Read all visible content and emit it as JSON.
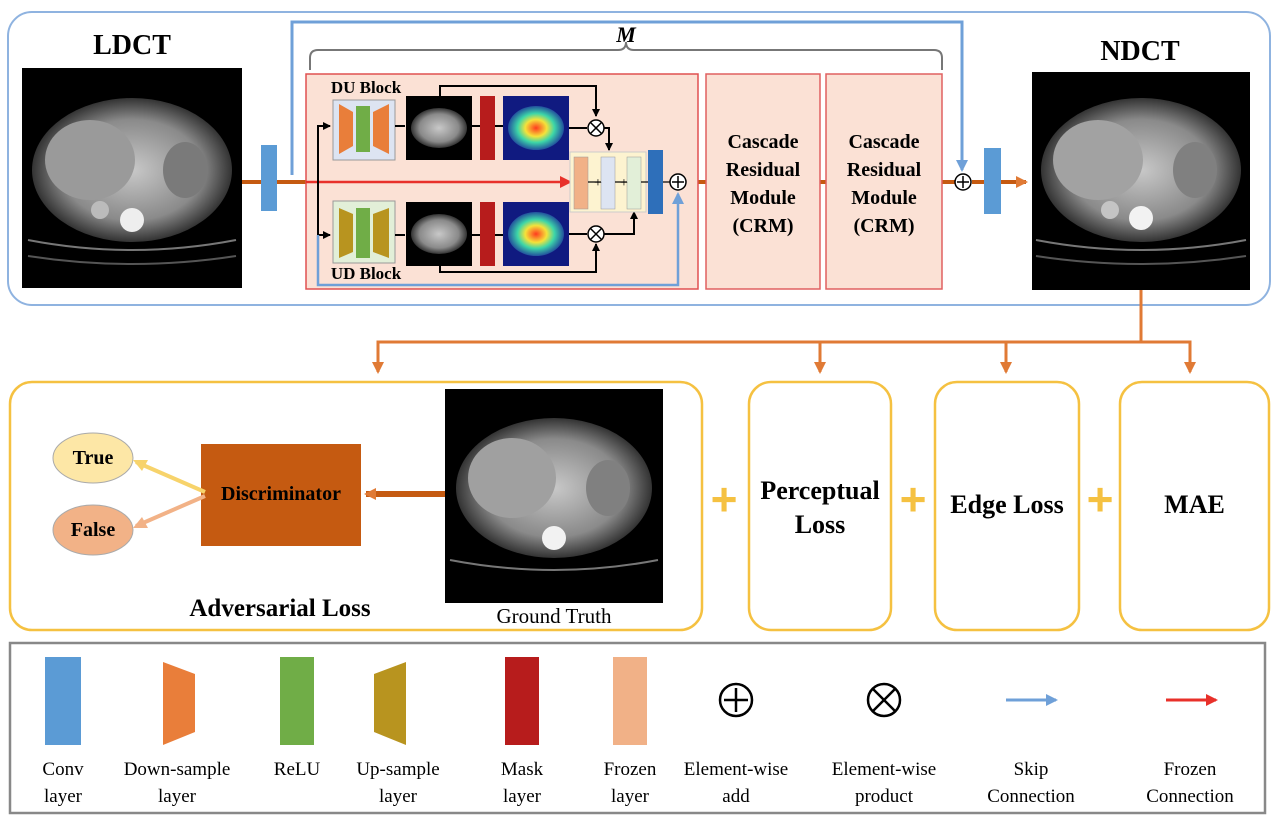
{
  "top": {
    "input_label": "LDCT",
    "output_label": "NDCT",
    "m_label": "M",
    "du_block": "DU Block",
    "ud_block": "UD Block",
    "crm1": [
      "Cascade",
      "Residual",
      "Module",
      "(CRM)"
    ],
    "crm2": [
      "Cascade",
      "Residual",
      "Module",
      "(CRM)"
    ]
  },
  "losses": {
    "adversarial": "Adversarial Loss",
    "discriminator": "Discriminator",
    "true_label": "True",
    "false_label": "False",
    "ground_truth": "Ground Truth",
    "perceptual": [
      "Perceptual",
      "Loss"
    ],
    "edge": "Edge Loss",
    "mae": "MAE",
    "plus": "+"
  },
  "legend": [
    {
      "icon": "conv",
      "line1": "Conv",
      "line2": "layer"
    },
    {
      "icon": "down",
      "line1": "Down-sample",
      "line2": "layer"
    },
    {
      "icon": "relu",
      "line1": "ReLU",
      "line2": ""
    },
    {
      "icon": "up",
      "line1": "Up-sample",
      "line2": "layer"
    },
    {
      "icon": "mask",
      "line1": "Mask",
      "line2": "layer"
    },
    {
      "icon": "frozen",
      "line1": "Frozen",
      "line2": "layer"
    },
    {
      "icon": "add",
      "line1": "Element-wise",
      "line2": "add"
    },
    {
      "icon": "product",
      "line1": "Element-wise",
      "line2": "product"
    },
    {
      "icon": "skip",
      "line1": "Skip",
      "line2": "Connection"
    },
    {
      "icon": "frozen-conn",
      "line1": "Frozen",
      "line2": "Connection"
    }
  ],
  "colors": {
    "conv": "#5b9bd5",
    "down": "#e97e3a",
    "relu": "#70ad47",
    "up": "#b8941f",
    "mask": "#b71c1c",
    "frozen": "#f1b187",
    "skip": "#6fa0d8",
    "frozen_conn": "#e8302a",
    "main_arrow": "#c55a11",
    "yellow": "#f5c141",
    "panel_border": "#8fb3e0"
  }
}
